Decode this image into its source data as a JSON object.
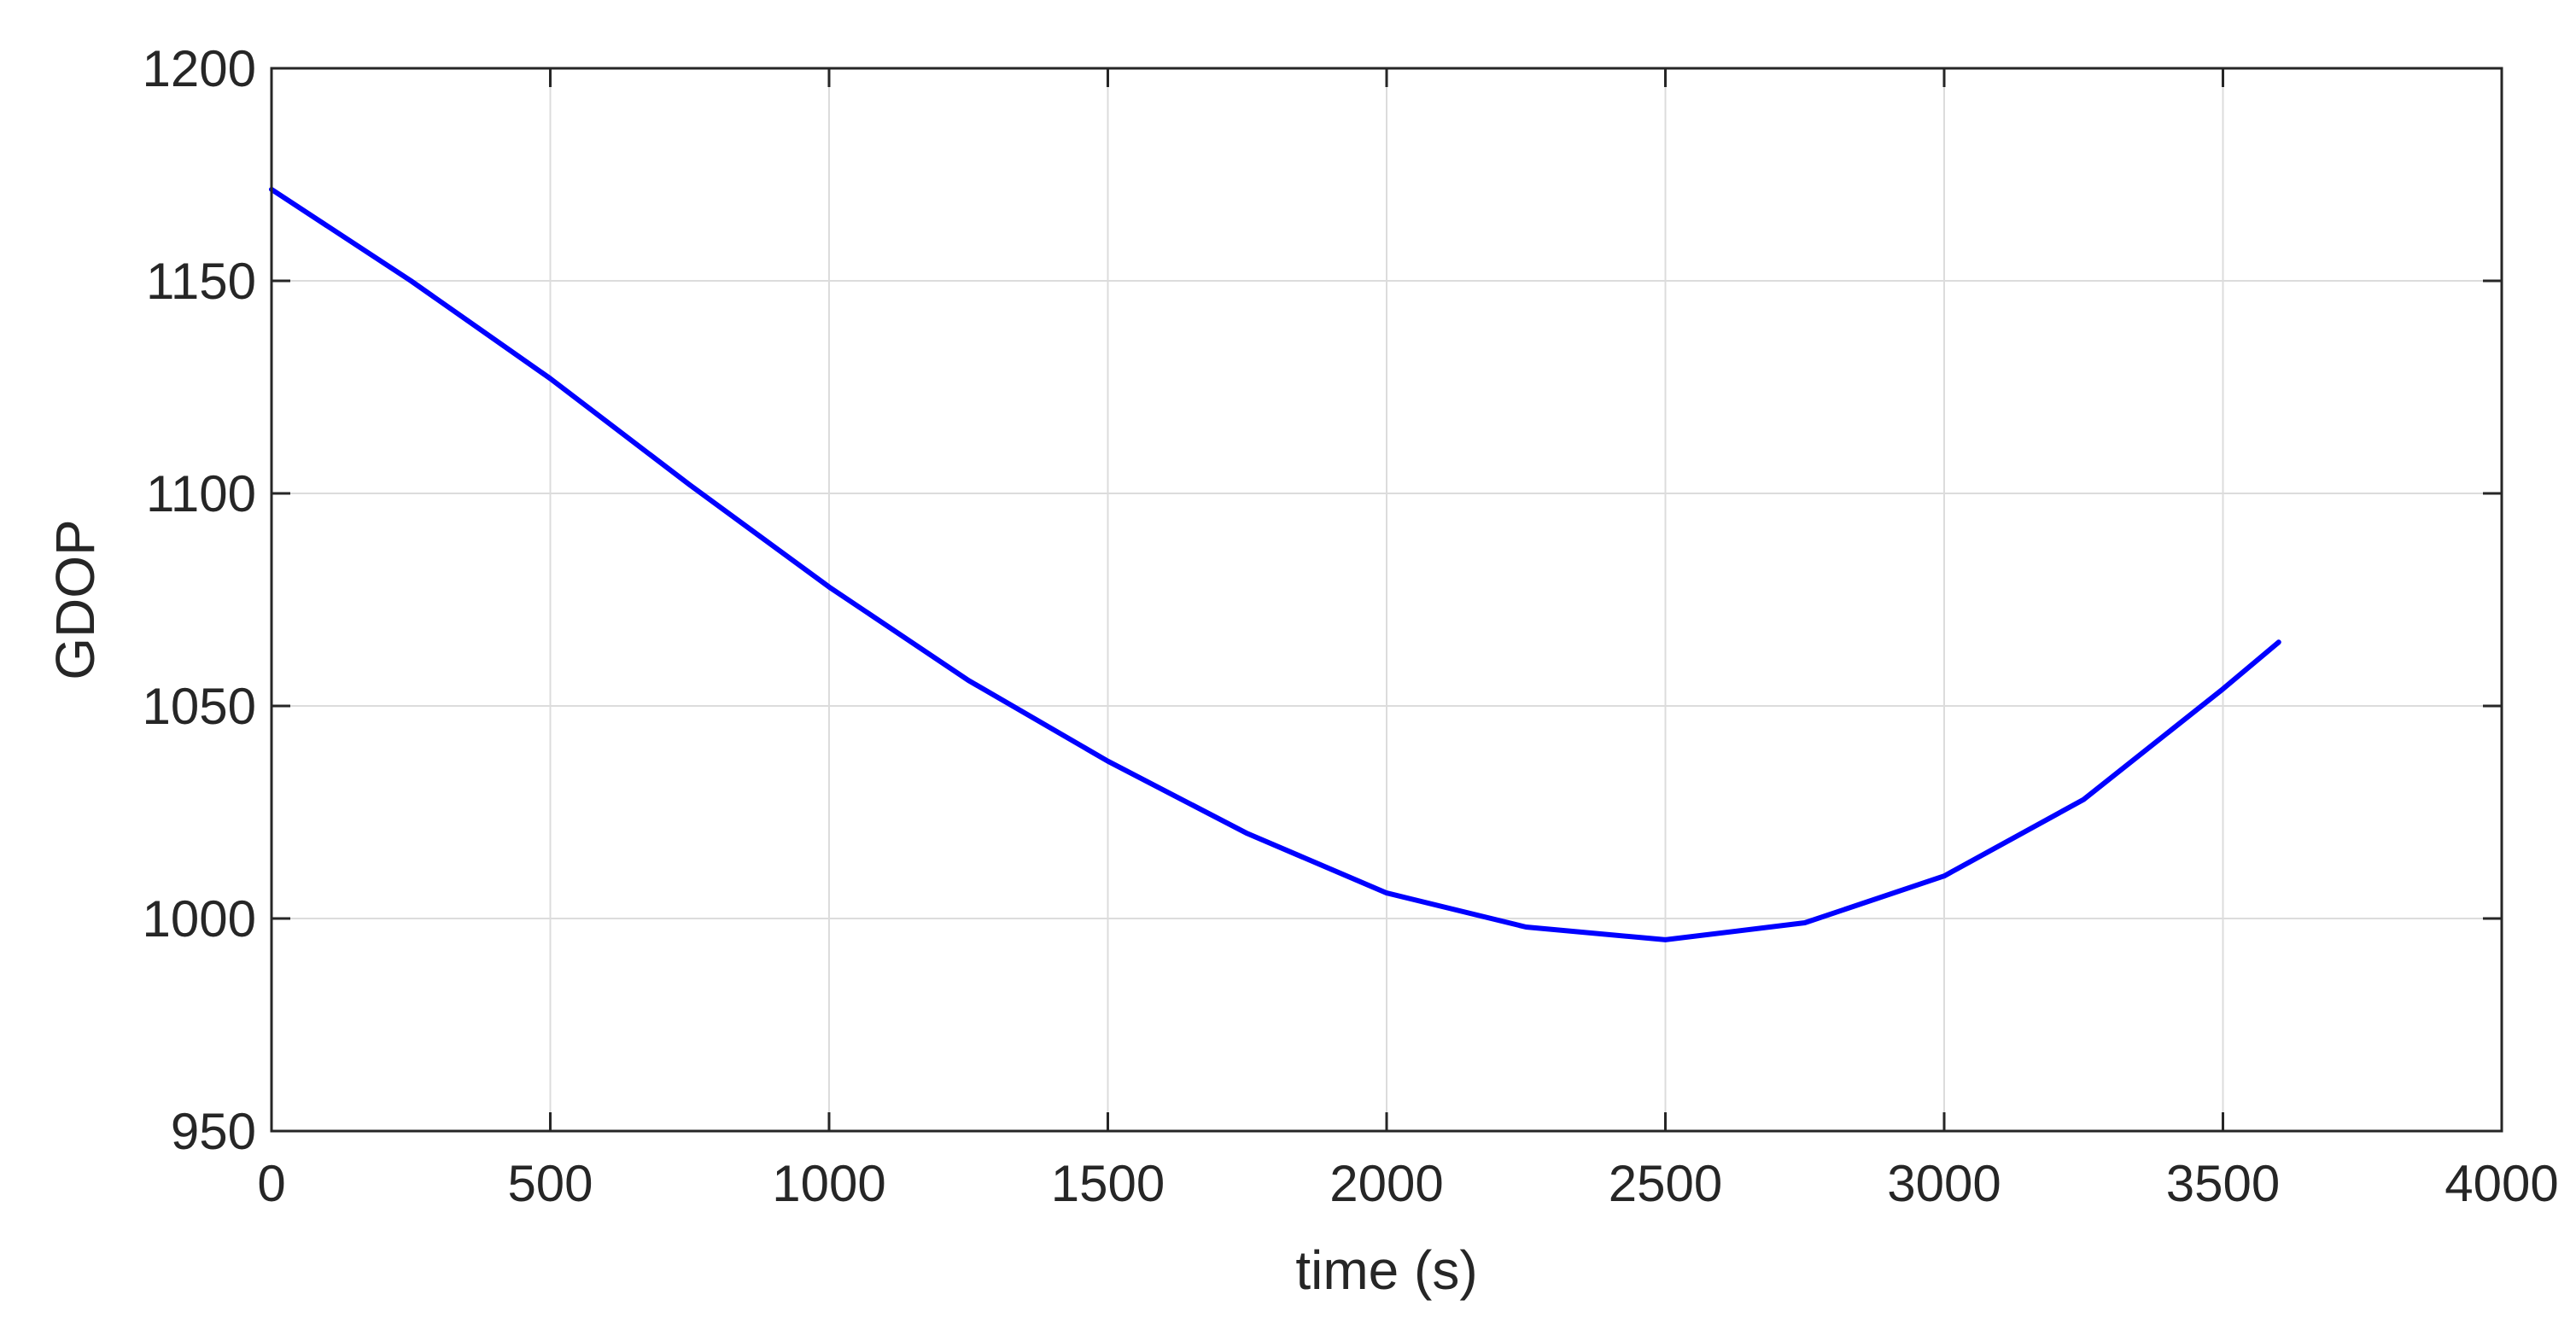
{
  "chart_data": {
    "type": "line",
    "title": "",
    "xlabel": "time (s)",
    "ylabel": "GDOP",
    "xlim": [
      0,
      4000
    ],
    "ylim": [
      950,
      1200
    ],
    "xticks": [
      0,
      500,
      1000,
      1500,
      2000,
      2500,
      3000,
      3500,
      4000
    ],
    "yticks": [
      950,
      1000,
      1050,
      1100,
      1150,
      1200
    ],
    "grid": true,
    "colors": {
      "line": "#0000ff",
      "axes": "#262626",
      "grid": "#dcdcdc",
      "background": "#ffffff"
    },
    "series": [
      {
        "x": [
          0,
          250,
          500,
          750,
          1000,
          1250,
          1500,
          1750,
          2000,
          2250,
          2500,
          2750,
          3000,
          3250,
          3500,
          3600
        ],
        "y": [
          1171.5,
          1150,
          1127,
          1102,
          1078,
          1056,
          1037,
          1020,
          1006,
          998,
          995,
          999,
          1010,
          1028,
          1054,
          1065
        ]
      }
    ]
  }
}
